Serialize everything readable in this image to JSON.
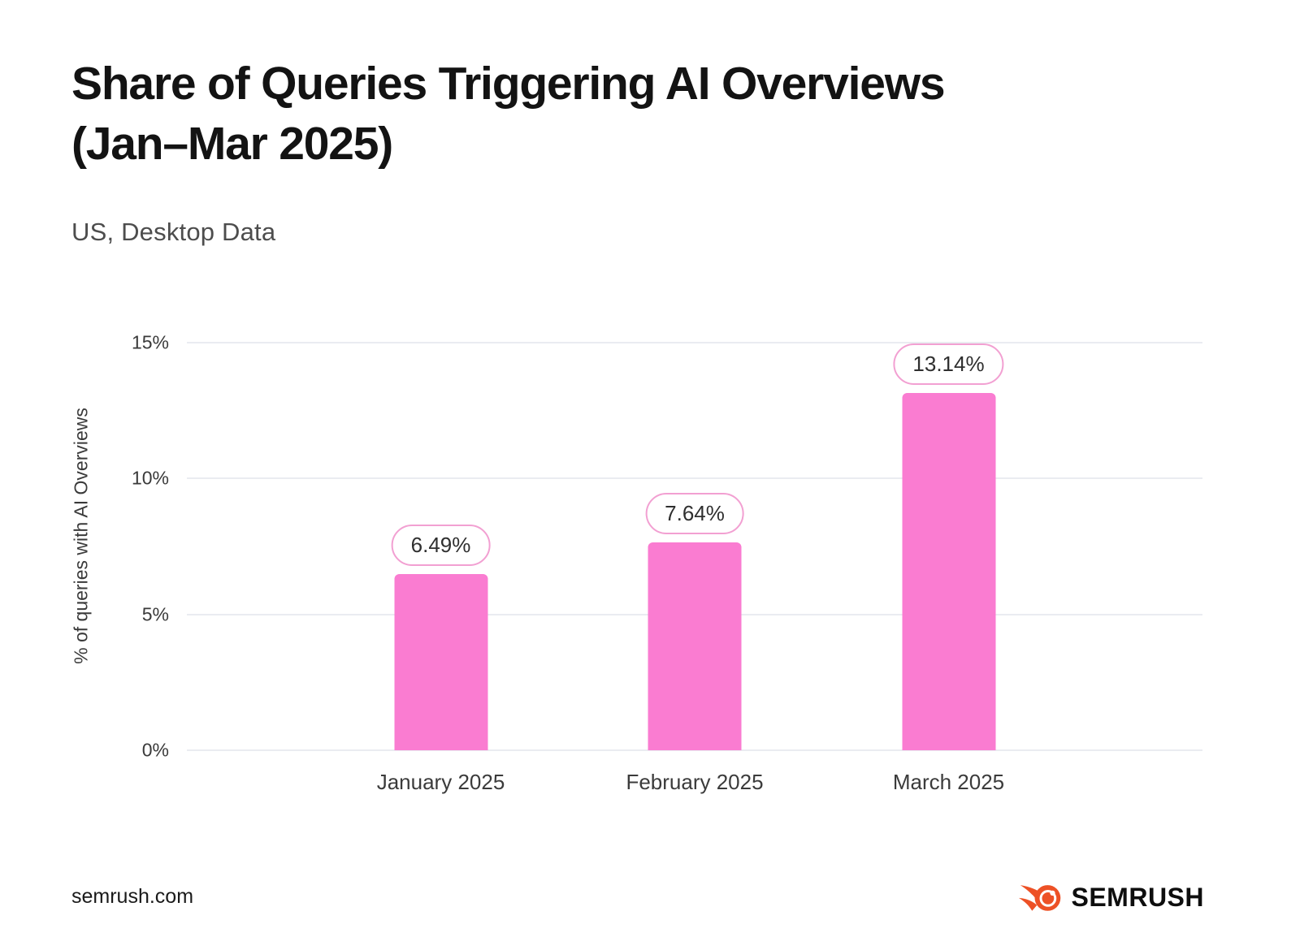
{
  "header": {
    "title_line1": "Share of Queries Triggering AI Overviews",
    "title_line2": "(Jan–Mar 2025)",
    "subtitle": "US, Desktop Data"
  },
  "footer": {
    "website": "semrush.com",
    "brand": "SEMRUSH"
  },
  "colors": {
    "bar": "#FA7CD1",
    "bubble_border": "#F2A0D2",
    "grid": "#EAECF1",
    "brand_orange": "#ED5126"
  },
  "chart_data": {
    "type": "bar",
    "title": "Share of Queries Triggering AI Overviews (Jan–Mar 2025)",
    "subtitle": "US, Desktop Data",
    "categories": [
      "January 2025",
      "February 2025",
      "March 2025"
    ],
    "values": [
      6.49,
      7.64,
      13.14
    ],
    "value_labels": [
      "6.49%",
      "7.64%",
      "13.14%"
    ],
    "xlabel": "",
    "ylabel": "% of queries with AI Overviews",
    "ylim": [
      0,
      15
    ],
    "yticks": [
      0,
      5,
      10,
      15
    ],
    "ytick_labels": [
      "0%",
      "5%",
      "10%",
      "15%"
    ],
    "grid": true,
    "legend": false
  }
}
